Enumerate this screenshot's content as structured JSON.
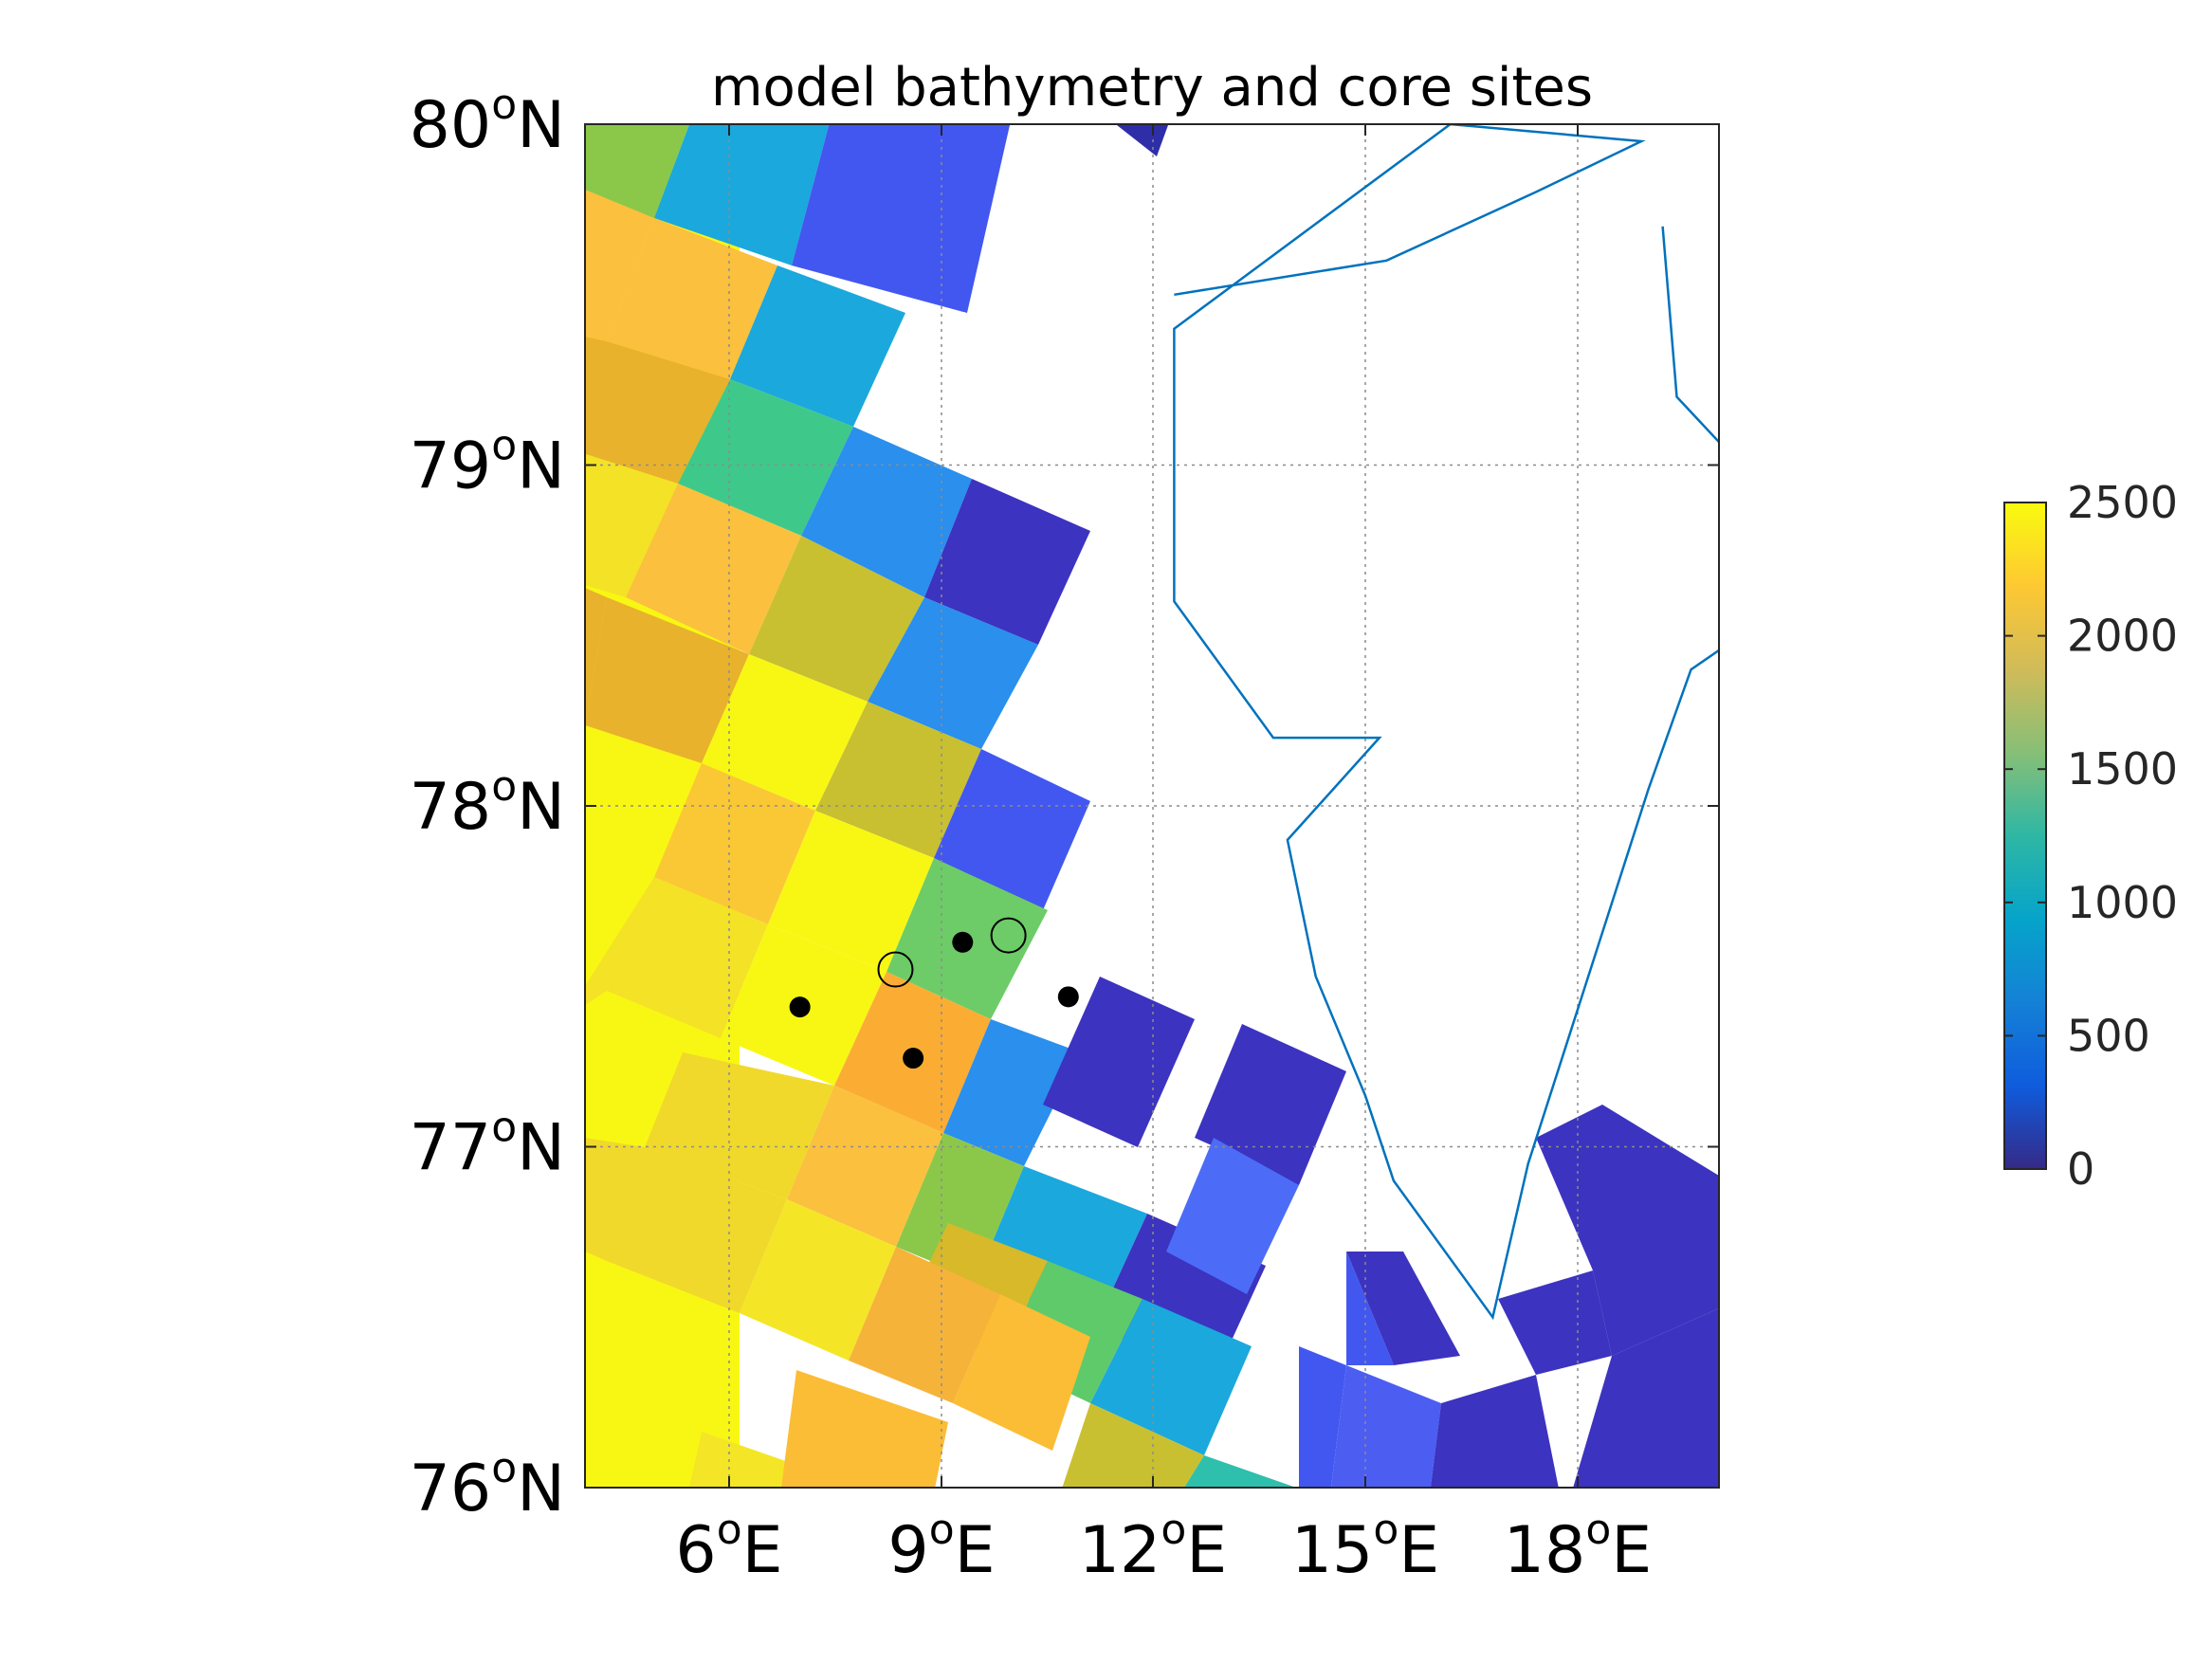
{
  "chart_data": {
    "type": "heatmap",
    "title": "model bathymetry and core sites",
    "xlabel": "",
    "ylabel": "",
    "xlim": [
      3.9,
      20.3
    ],
    "ylim": [
      76,
      80
    ],
    "x_ticks": [
      6,
      9,
      12,
      15,
      18
    ],
    "y_ticks": [
      76,
      77,
      78,
      79,
      80
    ],
    "x_tick_labels": [
      {
        "num": "6",
        "deg": "o",
        "dir": "E"
      },
      {
        "num": "9",
        "deg": "o",
        "dir": "E"
      },
      {
        "num": "12",
        "deg": "o",
        "dir": "E"
      },
      {
        "num": "15",
        "deg": "o",
        "dir": "E"
      },
      {
        "num": "18",
        "deg": "o",
        "dir": "E"
      }
    ],
    "y_tick_labels": [
      {
        "num": "76",
        "deg": "o",
        "dir": "N"
      },
      {
        "num": "77",
        "deg": "o",
        "dir": "N"
      },
      {
        "num": "78",
        "deg": "o",
        "dir": "N"
      },
      {
        "num": "79",
        "deg": "o",
        "dir": "N"
      },
      {
        "num": "80",
        "deg": "o",
        "dir": "N"
      }
    ],
    "grid": true,
    "colormap": "parula",
    "colorbar": {
      "range": [
        0,
        2500
      ],
      "ticks": [
        0,
        500,
        1000,
        1500,
        2000,
        2500
      ],
      "tick_labels": [
        "0",
        "500",
        "1000",
        "1500",
        "2000",
        "2500"
      ]
    },
    "grid_cells": [
      {
        "corners": [
          [
            4.5,
            79.6
          ],
          [
            6.6,
            79.5
          ],
          [
            7.3,
            79.2
          ],
          [
            5.4,
            79.4
          ]
        ],
        "depth": 2150
      },
      {
        "corners": [
          [
            4.7,
            79.3
          ],
          [
            6.4,
            79.1
          ],
          [
            7.0,
            78.8
          ],
          [
            5.1,
            79.0
          ]
        ],
        "depth": 2300
      },
      {
        "corners": [
          [
            6.1,
            79.6
          ],
          [
            7.8,
            79.4
          ],
          [
            8.4,
            79.1
          ],
          [
            6.6,
            79.3
          ]
        ],
        "depth": 1050
      },
      {
        "corners": [
          [
            5.4,
            79.4
          ],
          [
            7.3,
            79.2
          ],
          [
            7.8,
            78.9
          ],
          [
            6.1,
            79.1
          ]
        ],
        "depth": 1350
      },
      {
        "corners": [
          [
            6.6,
            79.1
          ],
          [
            8.4,
            78.9
          ],
          [
            9.1,
            78.6
          ],
          [
            7.4,
            78.8
          ]
        ],
        "depth": 650
      },
      {
        "corners": [
          [
            7.4,
            78.8
          ],
          [
            9.1,
            78.6
          ],
          [
            9.8,
            78.3
          ],
          [
            8.1,
            78.5
          ]
        ],
        "depth": 780
      },
      {
        "corners": [
          [
            8.1,
            78.5
          ],
          [
            9.8,
            78.3
          ],
          [
            10.5,
            78.0
          ],
          [
            8.8,
            78.2
          ]
        ],
        "depth": 250
      }
    ],
    "coastline": [
      [
        12.3,
        79.5
      ],
      [
        15.3,
        79.6
      ],
      [
        17.4,
        79.8
      ],
      [
        18.9,
        79.95
      ],
      [
        16.2,
        80.0
      ],
      [
        12.3,
        79.4
      ],
      [
        12.3,
        78.6
      ],
      [
        13.7,
        78.2
      ],
      [
        15.2,
        78.2
      ],
      [
        13.9,
        77.9
      ],
      [
        14.3,
        77.5
      ],
      [
        15.0,
        77.15
      ],
      [
        15.4,
        76.9
      ],
      [
        16.8,
        76.5
      ],
      [
        17.3,
        76.95
      ],
      [
        19.0,
        78.05
      ],
      [
        19.6,
        78.4
      ],
      [
        20.3,
        78.5
      ]
    ],
    "coastline2": [
      [
        19.2,
        79.7
      ],
      [
        19.4,
        79.2
      ],
      [
        20.3,
        79.0
      ]
    ],
    "sites_filled": [
      [
        7.0,
        77.41
      ],
      [
        8.6,
        77.26
      ],
      [
        9.3,
        77.6
      ],
      [
        10.8,
        77.44
      ]
    ],
    "sites_open": [
      [
        8.35,
        77.52
      ],
      [
        9.95,
        77.62
      ]
    ]
  }
}
